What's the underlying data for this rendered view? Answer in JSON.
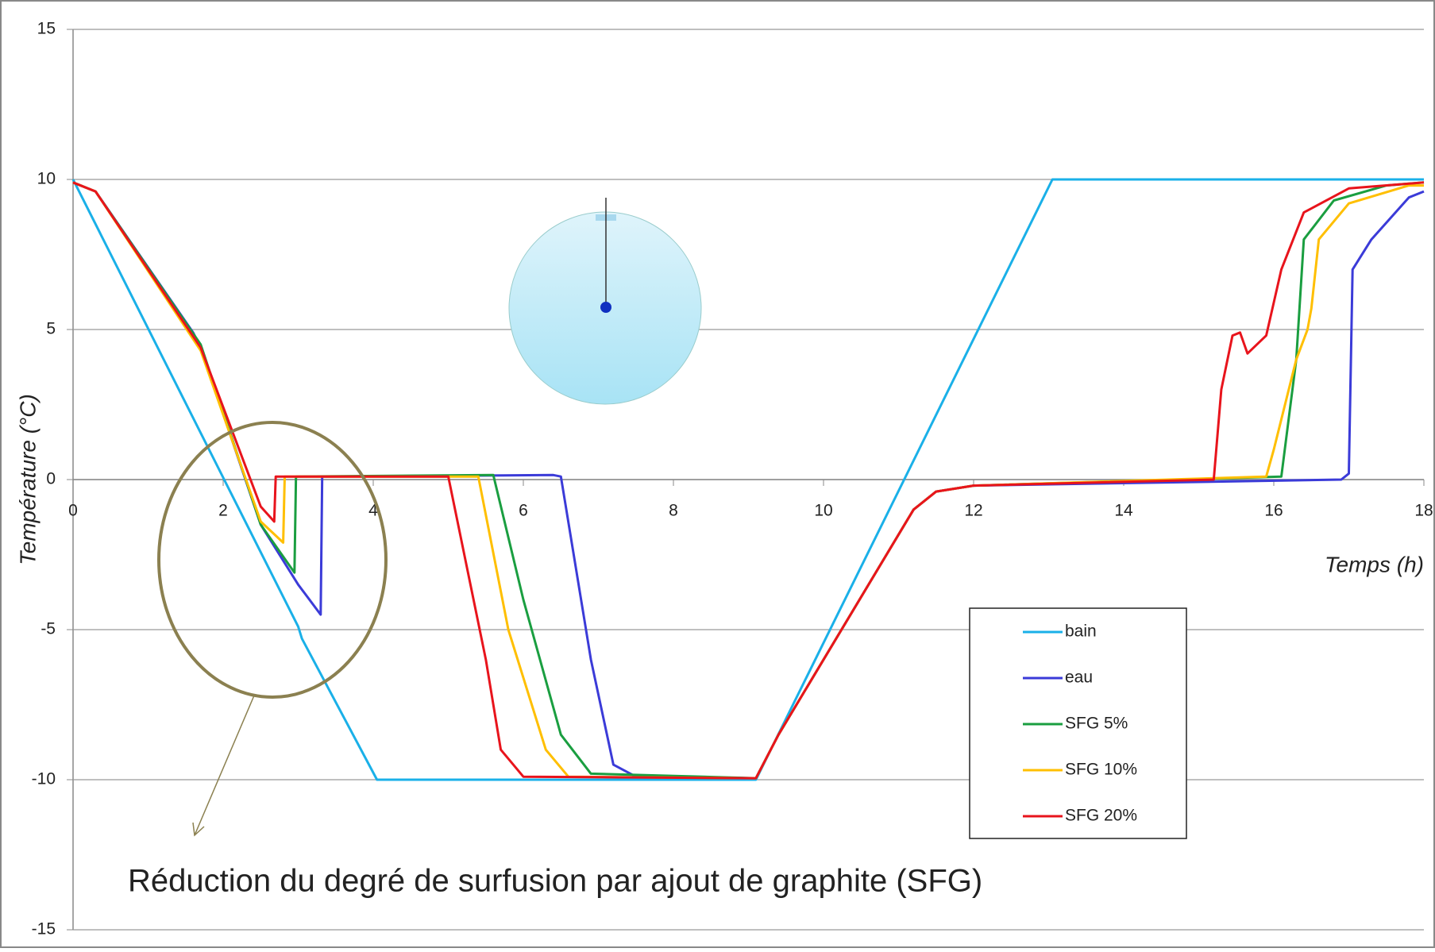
{
  "chart_data": {
    "type": "line",
    "x_label": "Temps (h)",
    "y_label": "Température (°C)",
    "annotation": "Réduction du degré de surfusion par ajout de graphite (SFG)",
    "xlim": [
      0,
      18
    ],
    "xticks": [
      0,
      2,
      4,
      6,
      8,
      10,
      12,
      14,
      16,
      18
    ],
    "ylim": [
      -15,
      15
    ],
    "yticks": [
      -15,
      -10,
      -5,
      0,
      5,
      10,
      15
    ],
    "grid": true,
    "legend": "lower-right",
    "series": [
      {
        "name": "bain",
        "color": "#1ab0e8",
        "x": [
          0,
          3.0,
          3.05,
          4.05,
          9.1,
          13.05,
          18
        ],
        "values": [
          10,
          -4.9,
          -5.3,
          -10,
          -10,
          10,
          10
        ]
      },
      {
        "name": "eau",
        "color": "#3b3bd8",
        "x": [
          0,
          0.3,
          1.6,
          1.7,
          2.5,
          3.0,
          3.3,
          3.32,
          6.4,
          6.5,
          6.9,
          7.2,
          7.5,
          9.1,
          9.4,
          11.2,
          11.5,
          12,
          16.9,
          17.0,
          17.05,
          17.3,
          17.8,
          18
        ],
        "values": [
          9.9,
          9.6,
          4.9,
          4.4,
          -1.5,
          -3.5,
          -4.5,
          0.1,
          0.15,
          0.1,
          -6,
          -9.5,
          -9.9,
          -9.95,
          -8.5,
          -1,
          -0.4,
          -0.2,
          0,
          0.2,
          7,
          8,
          9.4,
          9.6
        ]
      },
      {
        "name": "SFG 5%",
        "color": "#1a9e40",
        "x": [
          0,
          0.3,
          1.7,
          2.5,
          2.95,
          2.97,
          5.6,
          6.0,
          6.5,
          6.9,
          9.1,
          9.4,
          11.2,
          11.5,
          12,
          16.1,
          16.3,
          16.4,
          16.8,
          17.5,
          18
        ],
        "values": [
          9.9,
          9.6,
          4.5,
          -1.5,
          -3.1,
          0.1,
          0.15,
          -4,
          -8.5,
          -9.8,
          -9.95,
          -8.5,
          -1,
          -0.4,
          -0.2,
          0.1,
          4,
          8,
          9.3,
          9.8,
          9.9
        ]
      },
      {
        "name": "SFG 10%",
        "color": "#ffbf00",
        "x": [
          0,
          0.3,
          1.7,
          2.5,
          2.8,
          2.82,
          5.4,
          5.8,
          6.3,
          6.6,
          9.1,
          9.4,
          11.2,
          11.5,
          12,
          15.9,
          16.0,
          16.3,
          16.45,
          16.5,
          16.6,
          17,
          17.8,
          18
        ],
        "values": [
          9.9,
          9.6,
          4.3,
          -1.4,
          -2.1,
          0.1,
          0.1,
          -5,
          -9,
          -9.9,
          -9.95,
          -8.5,
          -1,
          -0.4,
          -0.2,
          0.1,
          1,
          4,
          5,
          5.7,
          8,
          9.2,
          9.8,
          9.8
        ]
      },
      {
        "name": "SFG 20%",
        "color": "#e8141c",
        "x": [
          0,
          0.3,
          1.7,
          2.5,
          2.68,
          2.7,
          5.0,
          5.5,
          5.7,
          6.0,
          9.1,
          9.4,
          11.2,
          11.5,
          12,
          15.2,
          15.3,
          15.45,
          15.55,
          15.65,
          15.9,
          16.1,
          16.4,
          17,
          18
        ],
        "values": [
          9.9,
          9.6,
          4.4,
          -0.9,
          -1.4,
          0.1,
          0.1,
          -6,
          -9,
          -9.9,
          -9.95,
          -8.5,
          -1,
          -0.4,
          -0.2,
          0,
          3,
          4.8,
          4.9,
          4.2,
          4.8,
          7,
          8.9,
          9.7,
          9.9
        ]
      }
    ]
  }
}
